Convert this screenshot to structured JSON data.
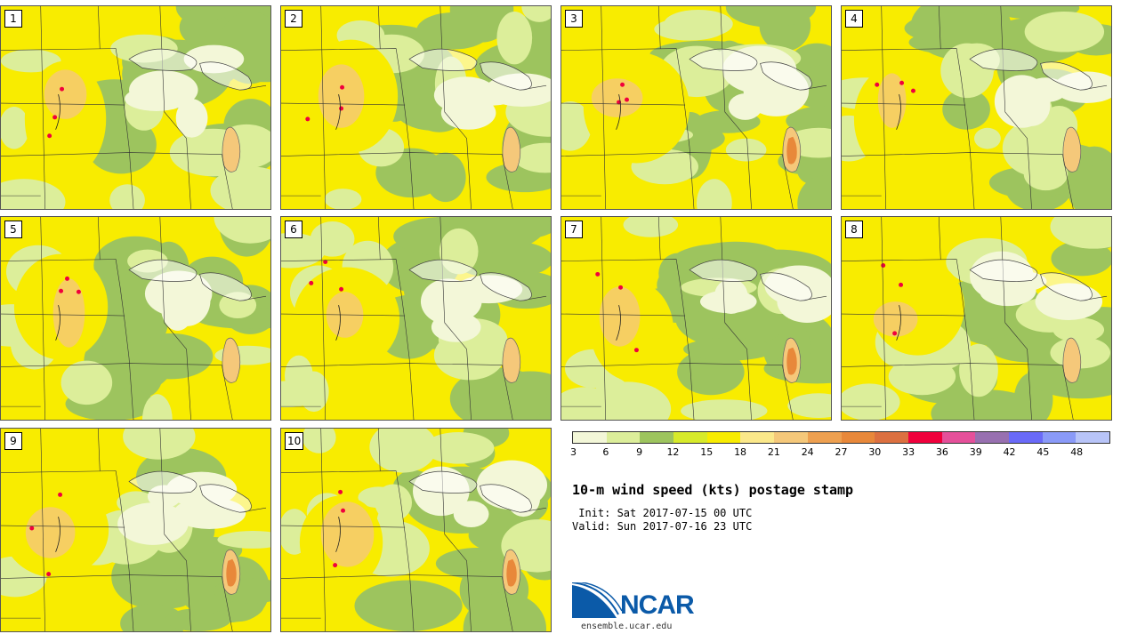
{
  "panels": [
    {
      "label": "1"
    },
    {
      "label": "2"
    },
    {
      "label": "3"
    },
    {
      "label": "4"
    },
    {
      "label": "5"
    },
    {
      "label": "6"
    },
    {
      "label": "7"
    },
    {
      "label": "8"
    },
    {
      "label": "9"
    },
    {
      "label": "10"
    }
  ],
  "legend": {
    "ticks": [
      "3",
      "6",
      "9",
      "12",
      "15",
      "18",
      "21",
      "24",
      "27",
      "30",
      "33",
      "36",
      "39",
      "42",
      "45",
      "48"
    ],
    "colors": [
      "#f3f7d8",
      "#dcee9a",
      "#9dc45e",
      "#d7ea2a",
      "#f8ec00",
      "#fbe88a",
      "#f5c87a",
      "#eea050",
      "#e8883a",
      "#dc7040",
      "#f0003c",
      "#e5509a",
      "#9870b0",
      "#6a6af8",
      "#8a9af8",
      "#b8c4f8"
    ]
  },
  "title": "10-m wind speed (kts) postage stamp",
  "init": " Init: Sat 2017-07-15 00 UTC",
  "valid": "Valid: Sun 2017-07-16 23 UTC",
  "logo": {
    "text": "NCAR",
    "color": "#0b5aa8"
  },
  "site": "ensemble.ucar.edu"
}
